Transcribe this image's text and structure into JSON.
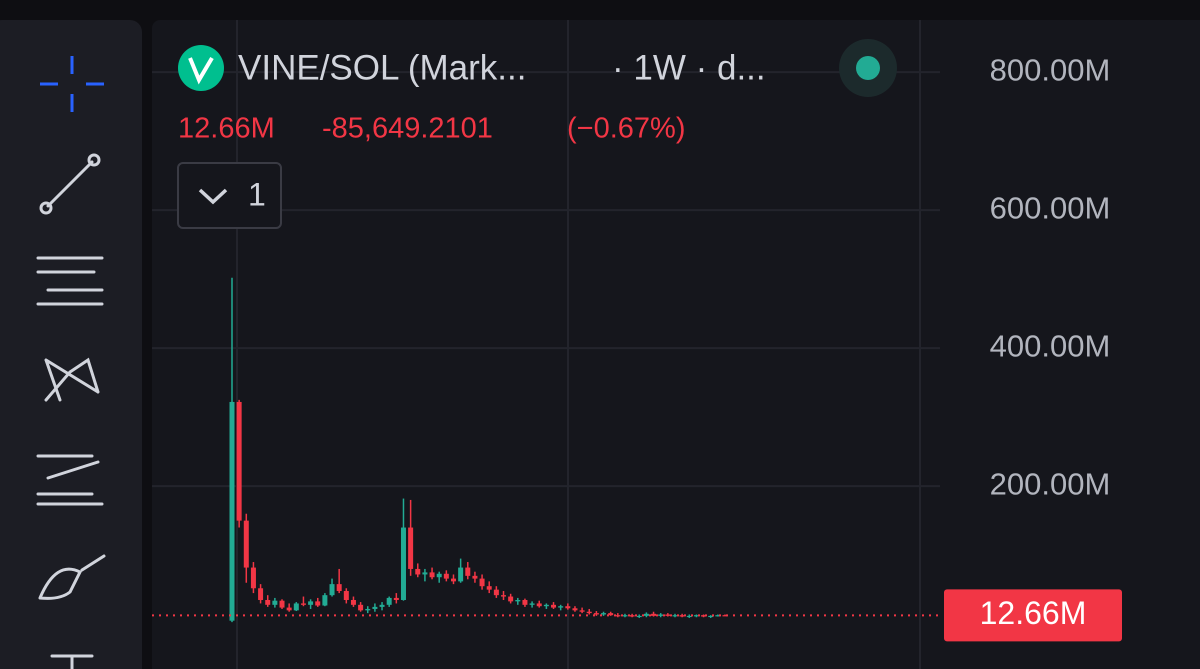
{
  "header": {
    "pair": "VINE/SOL (Mark...",
    "meta": "· 1W · d...",
    "price": "12.66M",
    "change": "-85,649.2101",
    "change_pct": "(−0.67%)",
    "indicator_count": "1"
  },
  "chart_data": {
    "type": "candlestick",
    "up_color": "#22ab94",
    "down_color": "#f23645",
    "ylim": [
      -65,
      890
    ],
    "yticks": [
      {
        "value": 200,
        "label": "200.00M"
      },
      {
        "value": 400,
        "label": "400.00M"
      },
      {
        "value": 600,
        "label": "600.00M"
      },
      {
        "value": 800,
        "label": "800.00M"
      }
    ],
    "grid": true,
    "price_line": {
      "value": 12.66,
      "label": "12.66M"
    },
    "ohlc": [
      [
        5,
        502,
        3,
        322
      ],
      [
        322,
        325,
        140,
        150
      ],
      [
        150,
        160,
        60,
        82
      ],
      [
        82,
        90,
        45,
        52
      ],
      [
        52,
        58,
        30,
        35
      ],
      [
        35,
        42,
        25,
        28
      ],
      [
        28,
        38,
        24,
        34
      ],
      [
        34,
        36,
        22,
        24
      ],
      [
        24,
        30,
        18,
        20
      ],
      [
        20,
        32,
        19,
        30
      ],
      [
        30,
        40,
        26,
        28
      ],
      [
        28,
        36,
        22,
        33
      ],
      [
        33,
        38,
        25,
        27
      ],
      [
        27,
        45,
        26,
        42
      ],
      [
        42,
        66,
        40,
        58
      ],
      [
        58,
        80,
        45,
        48
      ],
      [
        48,
        52,
        30,
        35
      ],
      [
        35,
        40,
        25,
        28
      ],
      [
        28,
        32,
        18,
        20
      ],
      [
        20,
        26,
        16,
        22
      ],
      [
        22,
        30,
        18,
        25
      ],
      [
        25,
        32,
        20,
        28
      ],
      [
        28,
        40,
        25,
        38
      ],
      [
        38,
        45,
        30,
        35
      ],
      [
        35,
        182,
        34,
        140
      ],
      [
        140,
        180,
        70,
        80
      ],
      [
        80,
        88,
        68,
        72
      ],
      [
        72,
        80,
        62,
        75
      ],
      [
        75,
        82,
        65,
        68
      ],
      [
        68,
        76,
        60,
        73
      ],
      [
        73,
        78,
        62,
        66
      ],
      [
        66,
        72,
        58,
        62
      ],
      [
        62,
        95,
        60,
        82
      ],
      [
        82,
        90,
        65,
        70
      ],
      [
        70,
        76,
        60,
        66
      ],
      [
        66,
        72,
        50,
        55
      ],
      [
        55,
        62,
        45,
        50
      ],
      [
        50,
        55,
        38,
        42
      ],
      [
        42,
        48,
        35,
        40
      ],
      [
        40,
        44,
        30,
        33
      ],
      [
        33,
        38,
        28,
        35
      ],
      [
        35,
        37,
        25,
        28
      ],
      [
        28,
        33,
        24,
        30
      ],
      [
        30,
        34,
        24,
        26
      ],
      [
        26,
        30,
        22,
        28
      ],
      [
        28,
        32,
        22,
        24
      ],
      [
        24,
        28,
        20,
        26
      ],
      [
        26,
        30,
        21,
        23
      ],
      [
        23,
        26,
        18,
        20
      ],
      [
        20,
        24,
        16,
        18
      ],
      [
        18,
        22,
        14,
        16
      ],
      [
        16,
        19,
        12,
        14
      ],
      [
        14,
        18,
        12,
        16
      ],
      [
        16,
        18,
        12,
        13
      ],
      [
        13,
        16,
        10,
        12
      ],
      [
        12,
        15,
        10,
        13
      ],
      [
        13,
        15,
        10,
        11
      ],
      [
        11,
        14,
        9,
        12
      ],
      [
        12,
        17,
        10,
        15
      ],
      [
        15,
        18,
        11,
        12
      ],
      [
        12,
        16,
        10,
        14
      ],
      [
        14,
        16,
        11,
        12
      ],
      [
        12,
        15,
        10,
        13
      ],
      [
        13,
        15,
        10,
        11
      ],
      [
        11,
        14,
        9,
        12
      ],
      [
        12,
        14,
        10,
        13
      ],
      [
        13,
        14,
        10,
        11
      ],
      [
        11,
        13,
        9,
        12
      ],
      [
        12,
        14,
        11,
        13
      ],
      [
        13,
        14,
        12,
        12.66
      ]
    ]
  }
}
